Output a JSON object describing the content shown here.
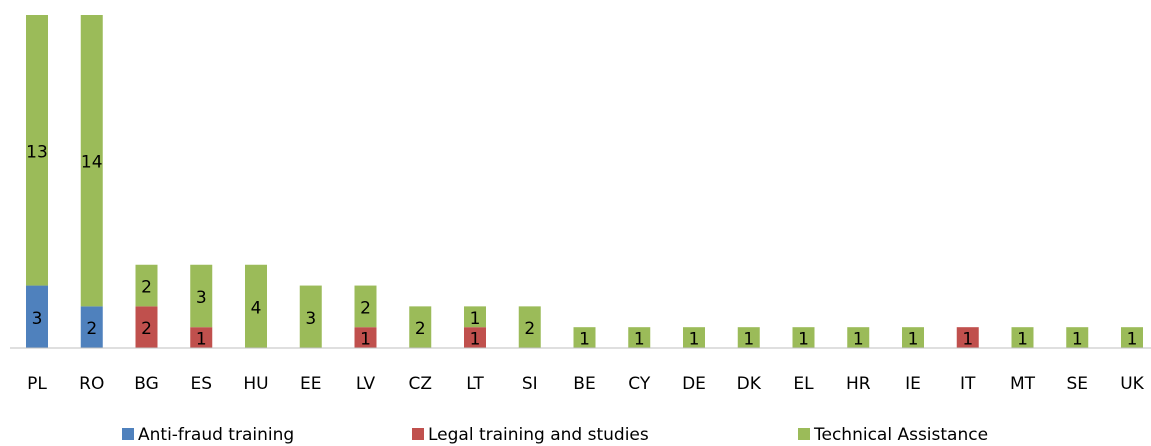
{
  "chart_data": {
    "type": "stacked_bar",
    "categories": [
      "PL",
      "RO",
      "BG",
      "ES",
      "HU",
      "EE",
      "LV",
      "CZ",
      "LT",
      "SI",
      "BE",
      "CY",
      "DE",
      "DK",
      "EL",
      "HR",
      "IE",
      "IT",
      "MT",
      "SE",
      "UK"
    ],
    "series": [
      {
        "name": "Anti-fraud training",
        "color": "#4f81bd",
        "values": [
          3,
          2,
          0,
          0,
          0,
          0,
          0,
          0,
          0,
          0,
          0,
          0,
          0,
          0,
          0,
          0,
          0,
          0,
          0,
          0,
          0
        ]
      },
      {
        "name": "Legal training and studies",
        "color": "#c0504d",
        "values": [
          0,
          0,
          2,
          1,
          0,
          0,
          1,
          0,
          1,
          0,
          0,
          0,
          0,
          0,
          0,
          0,
          0,
          1,
          0,
          0,
          0
        ]
      },
      {
        "name": "Technical Assistance",
        "color": "#9bbb59",
        "values": [
          13,
          14,
          2,
          3,
          4,
          3,
          2,
          2,
          1,
          2,
          1,
          1,
          1,
          1,
          1,
          1,
          1,
          0,
          1,
          1,
          1
        ]
      }
    ],
    "ylim": [
      0,
      16
    ],
    "legend": "bottom"
  }
}
